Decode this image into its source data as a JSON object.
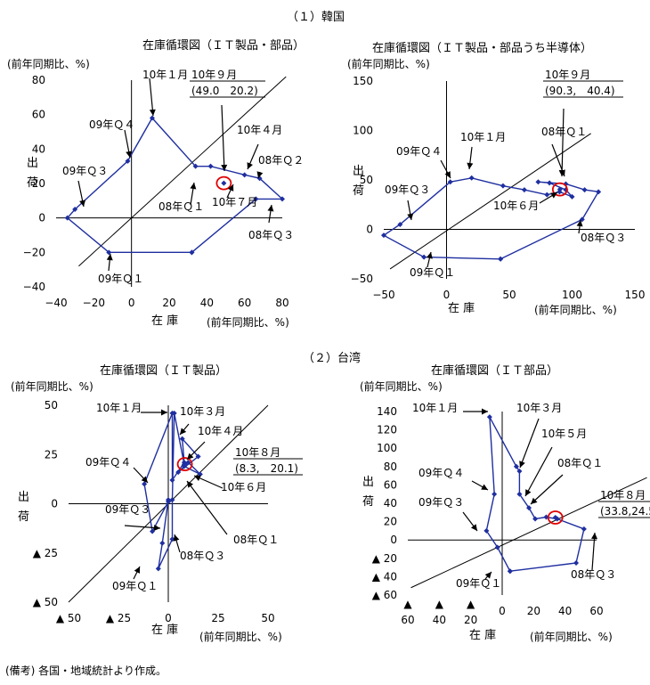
{
  "section_headers": [
    "（１）韓国",
    "（２）台湾"
  ],
  "footnote": "(備考) 各国・地域統計より作成。",
  "chart_data": [
    {
      "type": "line",
      "title": "在庫循環図（ＩＴ製品・部品）",
      "ylabel_unit": "(前年同期比、%)",
      "xlabel_unit": "(前年同期比、%)",
      "ylabel": "出 荷",
      "xlabel": "在 庫",
      "xlim": [
        -40,
        80
      ],
      "ylim": [
        -40,
        80
      ],
      "xticks": [
        -40,
        -20,
        0,
        20,
        40,
        60,
        80
      ],
      "xtick_labels": [
        "−40",
        "−20",
        "0",
        "20",
        "40",
        "60",
        "80"
      ],
      "yticks": [
        -40,
        -20,
        0,
        20,
        40,
        60,
        80
      ],
      "ytick_labels": [
        "−40",
        "−20",
        "0",
        "20",
        "40",
        "60",
        "80"
      ],
      "guide_line": [
        [
          -28,
          -28
        ],
        [
          82,
          82
        ]
      ],
      "series": [
        {
          "points": [
            [
              32,
              -20
            ],
            [
              66,
              11
            ],
            [
              80,
              11
            ],
            [
              68,
              23
            ],
            [
              60,
              25
            ],
            [
              42,
              30
            ],
            [
              34,
              30
            ],
            [
              11,
              58
            ],
            [
              -2,
              33
            ],
            [
              -30,
              5
            ],
            [
              -34,
              0
            ],
            [
              -12,
              -20
            ],
            [
              32,
              -20
            ]
          ]
        }
      ],
      "highlight": {
        "x": 49.0,
        "y": 20.2
      },
      "callout": {
        "title": "10年９月",
        "value": "(49.0　20.2)"
      },
      "annotations": [
        "10年１月",
        "09年Ｑ４",
        "09年Ｑ３",
        "09年Ｑ１",
        "08年Ｑ１",
        "10年７月",
        "10年４月",
        "08年Ｑ２",
        "08年Ｑ３"
      ]
    },
    {
      "type": "line",
      "title": "在庫循環図（ＩＴ製品・部品うち半導体）",
      "ylabel_unit": "(前年同期比、%)",
      "xlabel_unit": "(前年同期比、%)",
      "ylabel": "出 荷",
      "xlabel": "在 庫",
      "xlim": [
        -50,
        150
      ],
      "ylim": [
        -50,
        150
      ],
      "xticks": [
        -50,
        0,
        50,
        100,
        150
      ],
      "xtick_labels": [
        "−50",
        "0",
        "50",
        "100",
        "150"
      ],
      "yticks": [
        -50,
        0,
        50,
        100,
        150
      ],
      "ytick_labels": [
        "−50",
        "0",
        "50",
        "100",
        "150"
      ],
      "guide_line": [
        [
          -45,
          -40
        ],
        [
          115,
          97
        ]
      ],
      "series": [
        {
          "points": [
            [
              43,
              -30
            ],
            [
              -18,
              -28
            ],
            [
              -50,
              -6
            ],
            [
              -37,
              5
            ],
            [
              3,
              48
            ],
            [
              20,
              52
            ],
            [
              45,
              44
            ],
            [
              62,
              40
            ],
            [
              80,
              35
            ],
            [
              90,
              38
            ],
            [
              100,
              33
            ],
            [
              95,
              40
            ],
            [
              82,
              47
            ],
            [
              73,
              48
            ],
            [
              95,
              46
            ],
            [
              110,
              40
            ],
            [
              121,
              38
            ],
            [
              108,
              10
            ],
            [
              43,
              -30
            ]
          ]
        }
      ],
      "highlight": {
        "x": 90.3,
        "y": 40.4
      },
      "callout": {
        "title": "10年９月",
        "value": "(90.3,　40.4)"
      },
      "annotations": [
        "10年１月",
        "08年Ｑ１",
        "09年Ｑ４",
        "09年Ｑ３",
        "09年Ｑ１",
        "10年６月",
        "08年Ｑ３"
      ]
    },
    {
      "type": "line",
      "title": "在庫循環図（ＩＴ製品）",
      "ylabel_unit": "(前年同期比、%)",
      "xlabel_unit": "(前年同期比、%)",
      "ylabel": "出 荷",
      "xlabel": "在 庫",
      "xlim": [
        -50,
        50
      ],
      "ylim": [
        -50,
        50
      ],
      "xticks": [
        -50,
        -25,
        0,
        25,
        50
      ],
      "xtick_labels": [
        "▲ 50",
        "▲ 25",
        "0",
        "25",
        "50"
      ],
      "yticks": [
        -50,
        -25,
        0,
        25,
        50
      ],
      "ytick_labels": [
        "▲ 50",
        "▲ 25",
        "0",
        "25",
        "50"
      ],
      "guide_line": [
        [
          -50,
          -50
        ],
        [
          50,
          50
        ]
      ],
      "series": [
        {
          "points": [
            [
              0,
              2
            ],
            [
              -3,
              -20
            ],
            [
              -5,
              -33
            ],
            [
              2,
              -18
            ],
            [
              2,
              2
            ],
            [
              3,
              46
            ],
            [
              8,
              20
            ],
            [
              10,
              21
            ],
            [
              16,
              15
            ],
            [
              8,
              19
            ],
            [
              5,
              16
            ],
            [
              15,
              24
            ],
            [
              7,
              33
            ],
            [
              8,
              21
            ],
            [
              2,
              12
            ],
            [
              2,
              46
            ],
            [
              -12,
              10
            ],
            [
              -8,
              -14
            ],
            [
              0,
              1
            ]
          ]
        }
      ],
      "highlight": {
        "x": 8.3,
        "y": 20.1
      },
      "callout": {
        "title": "10年８月",
        "value": "(8.3,　20.1)"
      },
      "annotations": [
        "10年１月",
        "10年３月",
        "10年４月",
        "09年Ｑ４",
        "10年６月",
        "09年Ｑ３",
        "08年Ｑ１",
        "08年Ｑ３",
        "09年Ｑ１"
      ]
    },
    {
      "type": "line",
      "title": "在庫循環図（ＩＴ部品）",
      "ylabel_unit": "(前年同期比、%)",
      "xlabel_unit": "(前年同期比、%)",
      "ylabel": "出 荷",
      "xlabel": "在 庫",
      "xlim": [
        -60,
        60
      ],
      "ylim": [
        -60,
        140
      ],
      "xticks": [
        -60,
        -40,
        -20,
        0,
        20,
        40,
        60
      ],
      "xtick_labels": [
        "▲\n60",
        "▲\n40",
        "▲\n20",
        "0",
        "20",
        "40",
        "60"
      ],
      "yticks": [
        -60,
        -40,
        -20,
        0,
        20,
        40,
        60,
        80,
        100,
        120,
        140
      ],
      "ytick_labels": [
        "▲ 60",
        "▲ 40",
        "▲ 20",
        "0",
        "20",
        "40",
        "60",
        "80",
        "100",
        "120",
        "140"
      ],
      "guide_line": [
        [
          -58,
          -52
        ],
        [
          92,
          68
        ]
      ],
      "series": [
        {
          "points": [
            [
              5,
              -34
            ],
            [
              -3,
              -8
            ],
            [
              -10,
              10
            ],
            [
              -5,
              50
            ],
            [
              -8,
              134
            ],
            [
              9,
              80
            ],
            [
              11,
              75
            ],
            [
              11,
              50
            ],
            [
              17,
              35
            ],
            [
              21,
              23
            ],
            [
              28,
              25
            ],
            [
              35,
              23
            ],
            [
              52,
              12
            ],
            [
              47,
              -25
            ],
            [
              5,
              -34
            ]
          ]
        }
      ],
      "highlight": {
        "x": 33.8,
        "y": 24.5
      },
      "callout": {
        "title": "10年８月",
        "value": "(33.8,24.5)"
      },
      "annotations": [
        "10年１月",
        "10年３月",
        "10年５月",
        "08年Ｑ１",
        "09年Ｑ４",
        "09年Ｑ３",
        "09年Ｑ１",
        "08年Ｑ３"
      ]
    }
  ]
}
